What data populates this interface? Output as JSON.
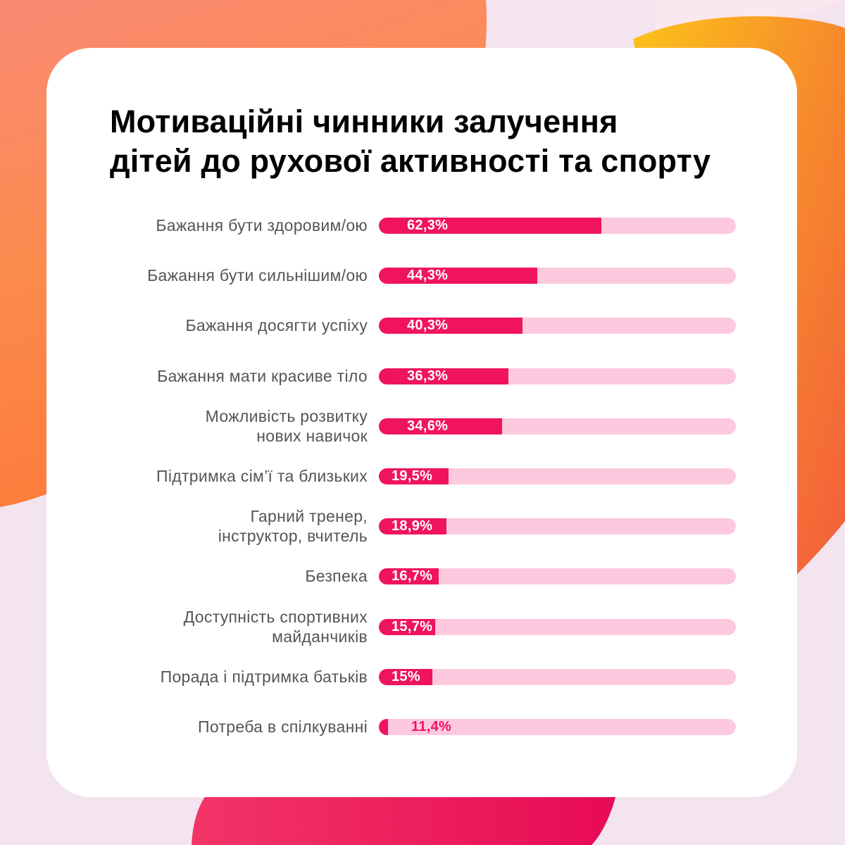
{
  "chart_data": {
    "type": "bar",
    "orientation": "horizontal",
    "title": "Мотиваційні чинники залучення дітей до рухової активності та спорту",
    "title_lines": [
      "Мотиваційні чинники залучення",
      "дітей до рухової активності та спорту"
    ],
    "categories": [
      "Бажання бути здоровим/ою",
      "Бажання бути сильнішим/ою",
      "Бажання досягти успіху",
      "Бажання мати красиве тіло",
      "Можливість розвитку нових навичок",
      "Підтримка сім’ї та близьких",
      "Гарний тренер, інструктор, вчитель",
      "Безпека",
      "Доступність спортивних майданчиків",
      "Порада і підтримка батьків",
      "Потреба в спілкуванні"
    ],
    "category_lines": [
      [
        "Бажання бути здоровим/ою"
      ],
      [
        "Бажання бути сильнішим/ою"
      ],
      [
        "Бажання досягти успіху"
      ],
      [
        "Бажання мати красиве тіло"
      ],
      [
        "Можливість розвитку",
        "нових навичок"
      ],
      [
        "Підтримка сім’ї та близьких"
      ],
      [
        "Гарний тренер,",
        "інструктор, вчитель"
      ],
      [
        "Безпека"
      ],
      [
        "Доступність спортивних",
        "майданчиків"
      ],
      [
        "Порада і підтримка батьків"
      ],
      [
        "Потреба в спілкуванні"
      ]
    ],
    "values": [
      62.3,
      44.3,
      40.3,
      36.3,
      34.6,
      19.5,
      18.9,
      16.7,
      15.7,
      15,
      11.4
    ],
    "value_labels": [
      "62,3%",
      "44,3%",
      "40,3%",
      "36,3%",
      "34,6%",
      "19,5%",
      "18,9%",
      "16,7%",
      "15,7%",
      "15%",
      "11,4%"
    ],
    "xlim": [
      0,
      100
    ],
    "grid": false,
    "legend": "none"
  },
  "colors": {
    "bar_fill": "#f0135e",
    "bar_track": "#fcc9df",
    "label_text": "#555555",
    "title_text": "#000000",
    "card": "#ffffff"
  }
}
